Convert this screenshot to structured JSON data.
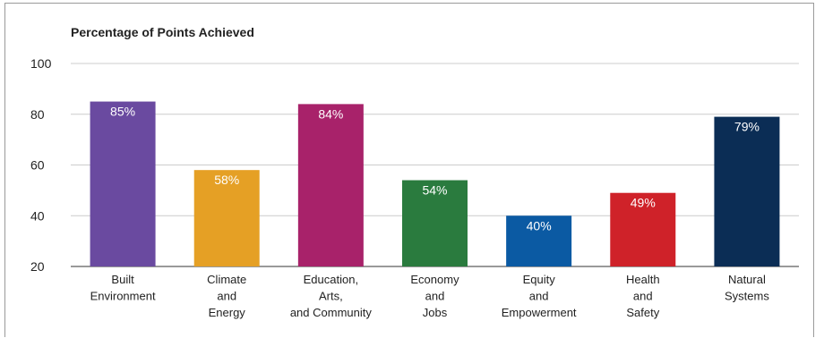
{
  "chart_data": {
    "type": "bar",
    "title": "Percentage of Points Achieved",
    "xlabel": "",
    "ylabel": "",
    "ylim": [
      20,
      100
    ],
    "yticks": [
      20,
      40,
      60,
      80,
      100
    ],
    "grid": true,
    "legend": "none",
    "categories": [
      [
        "Built",
        "Environment"
      ],
      [
        "Climate",
        "and",
        "Energy"
      ],
      [
        "Education,",
        "Arts,",
        "and Community"
      ],
      [
        "Economy",
        "and",
        "Jobs"
      ],
      [
        "Equity",
        "and",
        "Empowerment"
      ],
      [
        "Health",
        "and",
        "Safety"
      ],
      [
        "Natural",
        "Systems"
      ]
    ],
    "values": [
      85,
      58,
      84,
      54,
      40,
      49,
      79
    ],
    "data_labels": [
      "85%",
      "58%",
      "84%",
      "54%",
      "40%",
      "49%",
      "79%"
    ],
    "colors": [
      "#6a4aa0",
      "#e5a025",
      "#a8226a",
      "#2a7b3e",
      "#0b5aa3",
      "#cf2229",
      "#0b2d55"
    ]
  }
}
